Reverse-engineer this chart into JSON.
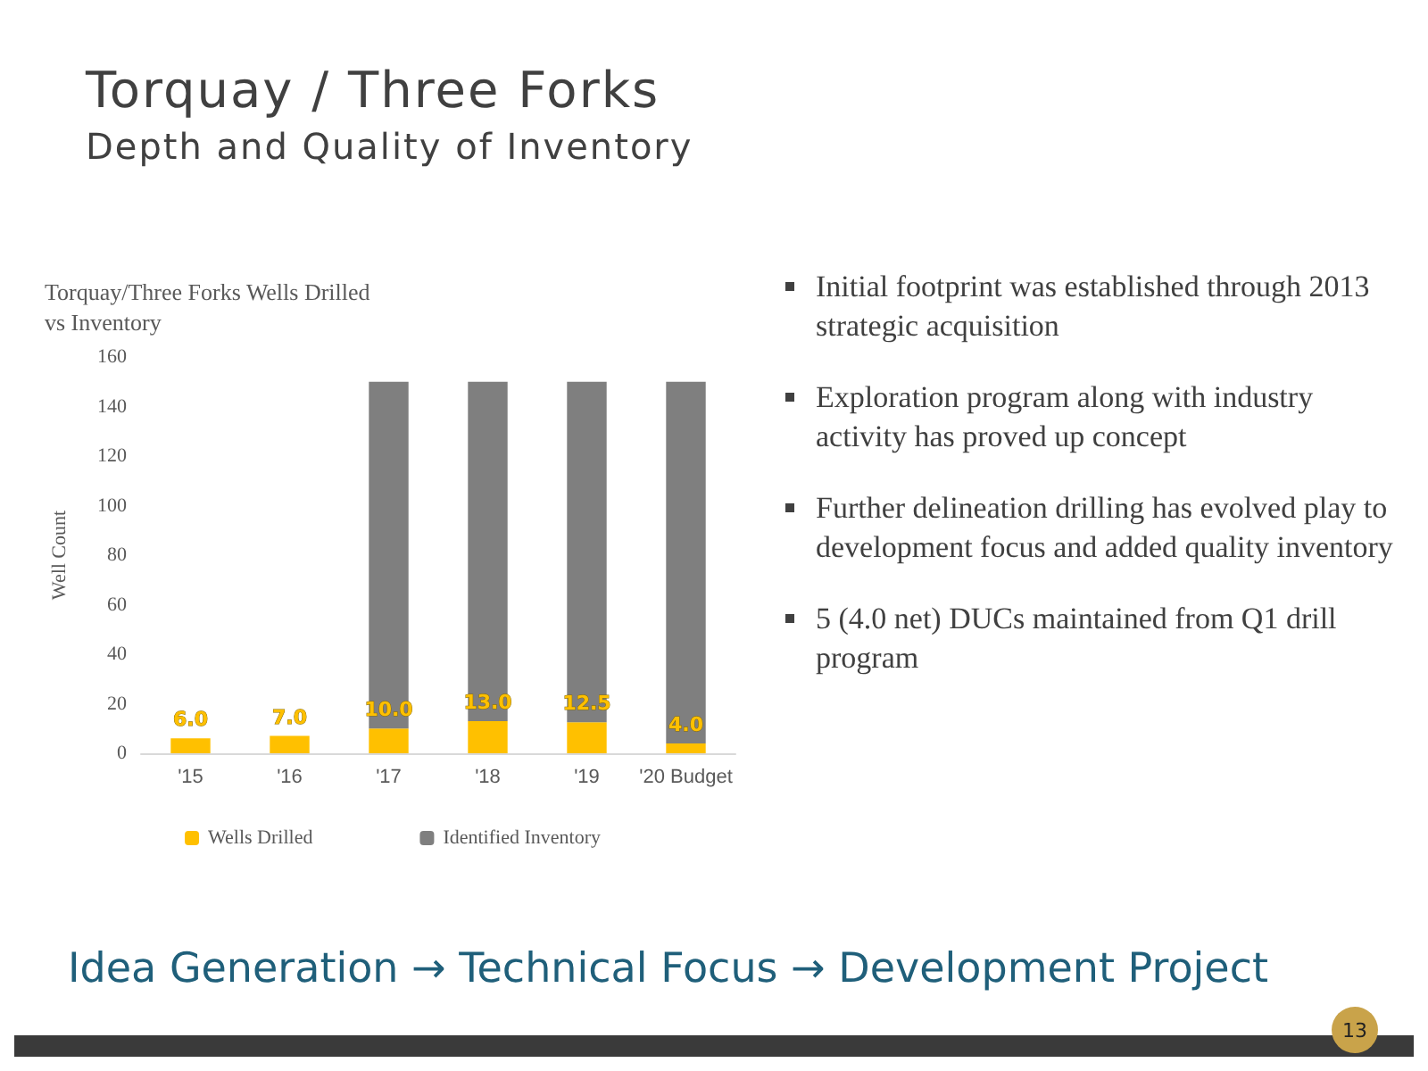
{
  "chart_data": {
    "type": "bar",
    "title": "Torquay / Three Forks",
    "subtitle": "Depth and Quality of Inventory",
    "categories": [
      "'15",
      "'16",
      "'17",
      "'18",
      "'19",
      "'20 Budget"
    ],
    "series": [
      {
        "name": "Wells Drilled",
        "color": "#ffc000",
        "values": [
          6.0,
          7.0,
          10.0,
          13.0,
          12.5,
          4.0
        ],
        "value_labels": [
          "6.0",
          "7.0",
          "10.0",
          "13.0",
          "12.5",
          "4.0"
        ]
      },
      {
        "name": "Identified Inventory",
        "color": "#7f7f7f",
        "values": [
          null,
          null,
          140,
          137,
          137.5,
          146
        ]
      }
    ],
    "stacked": true,
    "ylabel": "Well Count",
    "ylim": [
      0,
      160
    ],
    "yticks": [
      0,
      20,
      40,
      60,
      80,
      100,
      120,
      140,
      160
    ],
    "grid": false,
    "legend": "bottom",
    "annotations": [
      "Torquay/Three Forks Wells Drilled vs Inventory",
      "Initial footprint was established through 2013 strategic acquisition",
      "Exploration program along with industry activity has proved up concept",
      "Further delineation drilling has evolved play to development focus and added quality inventory",
      "5 (4.0 net) DUCs maintained from Q1 drill program",
      "Idea Generation → Technical Focus → Development Project",
      "13"
    ]
  }
}
